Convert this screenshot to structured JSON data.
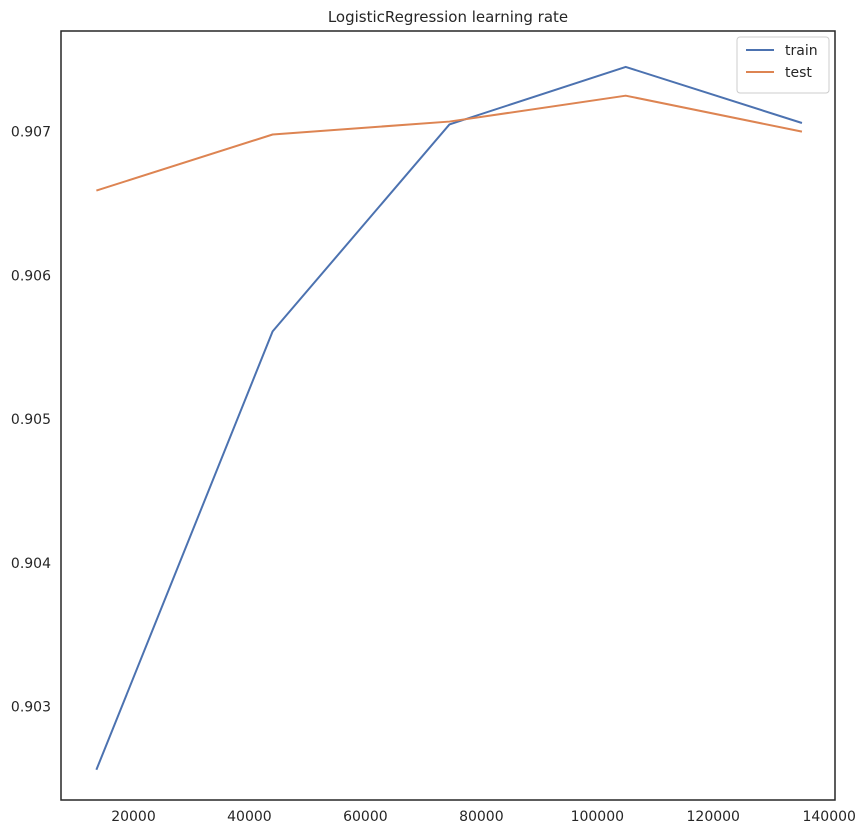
{
  "chart_data": {
    "type": "line",
    "title": "LogisticRegression learning rate",
    "xlabel": "",
    "ylabel": "",
    "xlim": [
      7500,
      141000
    ],
    "ylim": [
      0.90235,
      0.9077
    ],
    "x_ticks": [
      20000,
      40000,
      60000,
      80000,
      100000,
      120000,
      140000
    ],
    "x_tick_labels": [
      "20000",
      "40000",
      "60000",
      "80000",
      "100000",
      "120000",
      "140000"
    ],
    "y_ticks": [
      0.903,
      0.904,
      0.905,
      0.906,
      0.907
    ],
    "y_tick_labels": [
      "0.903",
      "0.904",
      "0.905",
      "0.906",
      "0.907"
    ],
    "grid": false,
    "legend_position": "top-right",
    "series": [
      {
        "name": "train",
        "color": "#4c72b0",
        "x": [
          13600,
          44000,
          74500,
          104900,
          135300
        ],
        "y": [
          0.90256,
          0.90561,
          0.90705,
          0.90745,
          0.90706
        ]
      },
      {
        "name": "test",
        "color": "#dd8452",
        "x": [
          13600,
          44000,
          74500,
          104900,
          135300
        ],
        "y": [
          0.90659,
          0.90698,
          0.90707,
          0.90725,
          0.907
        ]
      }
    ]
  }
}
